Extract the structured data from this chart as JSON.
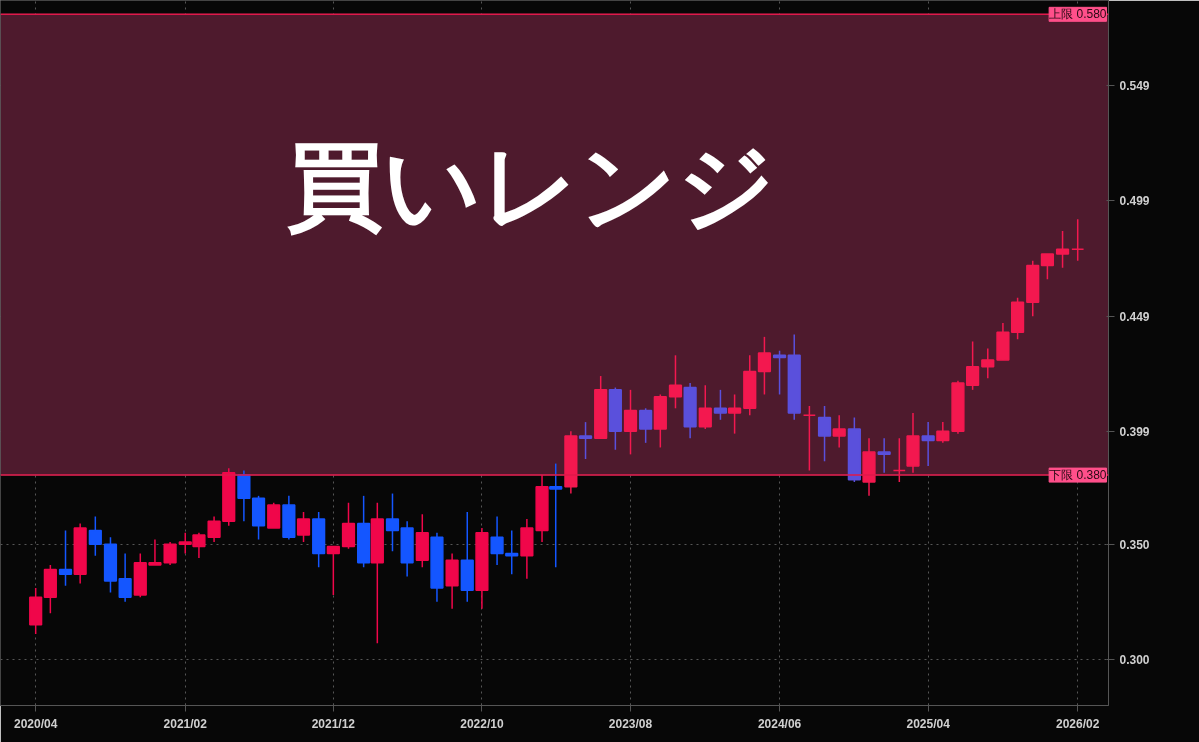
{
  "chart_data": {
    "type": "candlestick",
    "annotations": [
      "買いレンジ"
    ],
    "x": [
      "2020-04",
      "2020-05",
      "2020-06",
      "2020-07",
      "2020-08",
      "2020-09",
      "2020-10",
      "2020-11",
      "2020-12",
      "2021-01",
      "2021-02",
      "2021-03",
      "2021-04",
      "2021-05",
      "2021-06",
      "2021-07",
      "2021-08",
      "2021-09",
      "2021-10",
      "2021-11",
      "2021-12",
      "2022-01",
      "2022-02",
      "2022-03",
      "2022-04",
      "2022-05",
      "2022-06",
      "2022-07",
      "2022-08",
      "2022-09",
      "2022-10",
      "2022-11",
      "2022-12",
      "2023-01",
      "2023-02",
      "2023-03",
      "2023-04",
      "2023-05",
      "2023-06",
      "2023-07",
      "2023-08",
      "2023-09",
      "2023-10",
      "2023-11",
      "2023-12",
      "2024-01",
      "2024-02",
      "2024-03",
      "2024-04",
      "2024-05",
      "2024-06",
      "2024-07",
      "2024-08",
      "2024-09",
      "2024-10",
      "2024-11",
      "2024-12",
      "2025-01",
      "2025-02",
      "2025-03",
      "2025-04",
      "2025-05",
      "2025-06",
      "2025-07",
      "2025-08",
      "2025-09",
      "2025-10",
      "2025-11",
      "2025-12",
      "2026-01",
      "2026-02"
    ],
    "ohlc": [
      [
        0.315,
        0.331,
        0.311,
        0.327
      ],
      [
        0.327,
        0.341,
        0.32,
        0.339
      ],
      [
        0.339,
        0.356,
        0.332,
        0.337
      ],
      [
        0.337,
        0.359,
        0.333,
        0.357
      ],
      [
        0.356,
        0.362,
        0.345,
        0.35
      ],
      [
        0.35,
        0.353,
        0.329,
        0.334
      ],
      [
        0.335,
        0.346,
        0.325,
        0.327
      ],
      [
        0.328,
        0.346,
        0.327,
        0.342
      ],
      [
        0.341,
        0.352,
        0.341,
        0.342
      ],
      [
        0.342,
        0.351,
        0.341,
        0.35
      ],
      [
        0.35,
        0.355,
        0.346,
        0.351
      ],
      [
        0.349,
        0.355,
        0.344,
        0.354
      ],
      [
        0.353,
        0.362,
        0.351,
        0.36
      ],
      [
        0.36,
        0.383,
        0.358,
        0.381
      ],
      [
        0.38,
        0.382,
        0.36,
        0.37
      ],
      [
        0.37,
        0.371,
        0.352,
        0.358
      ],
      [
        0.357,
        0.368,
        0.357,
        0.367
      ],
      [
        0.367,
        0.371,
        0.352,
        0.353
      ],
      [
        0.354,
        0.364,
        0.351,
        0.361
      ],
      [
        0.361,
        0.364,
        0.34,
        0.346
      ],
      [
        0.346,
        0.349,
        0.328,
        0.349
      ],
      [
        0.349,
        0.368,
        0.348,
        0.359
      ],
      [
        0.359,
        0.371,
        0.34,
        0.342
      ],
      [
        0.342,
        0.368,
        0.307,
        0.361
      ],
      [
        0.361,
        0.372,
        0.347,
        0.356
      ],
      [
        0.357,
        0.36,
        0.336,
        0.342
      ],
      [
        0.343,
        0.363,
        0.34,
        0.355
      ],
      [
        0.353,
        0.355,
        0.325,
        0.331
      ],
      [
        0.332,
        0.346,
        0.322,
        0.343
      ],
      [
        0.343,
        0.364,
        0.325,
        0.33
      ],
      [
        0.33,
        0.357,
        0.322,
        0.355
      ],
      [
        0.353,
        0.362,
        0.341,
        0.346
      ],
      [
        0.346,
        0.356,
        0.337,
        0.345
      ],
      [
        0.345,
        0.361,
        0.335,
        0.357
      ],
      [
        0.356,
        0.38,
        0.351,
        0.375
      ],
      [
        0.375,
        0.385,
        0.34,
        0.374
      ],
      [
        0.375,
        0.399,
        0.372,
        0.397
      ],
      [
        0.397,
        0.403,
        0.387,
        0.396
      ],
      [
        0.396,
        0.423,
        0.396,
        0.417
      ],
      [
        0.417,
        0.418,
        0.391,
        0.399
      ],
      [
        0.399,
        0.417,
        0.389,
        0.408
      ],
      [
        0.408,
        0.409,
        0.394,
        0.4
      ],
      [
        0.4,
        0.415,
        0.392,
        0.414
      ],
      [
        0.414,
        0.432,
        0.409,
        0.419
      ],
      [
        0.418,
        0.42,
        0.396,
        0.401
      ],
      [
        0.401,
        0.419,
        0.4,
        0.409
      ],
      [
        0.409,
        0.417,
        0.404,
        0.407
      ],
      [
        0.407,
        0.415,
        0.398,
        0.409
      ],
      [
        0.409,
        0.432,
        0.406,
        0.425
      ],
      [
        0.425,
        0.44,
        0.415,
        0.433
      ],
      [
        0.432,
        0.434,
        0.415,
        0.431
      ],
      [
        0.432,
        0.441,
        0.404,
        0.407
      ],
      [
        0.406,
        0.41,
        0.382,
        0.406
      ],
      [
        0.405,
        0.41,
        0.386,
        0.397
      ],
      [
        0.397,
        0.406,
        0.392,
        0.4
      ],
      [
        0.4,
        0.405,
        0.377,
        0.378
      ],
      [
        0.377,
        0.396,
        0.371,
        0.39
      ],
      [
        0.39,
        0.396,
        0.381,
        0.389
      ],
      [
        0.382,
        0.396,
        0.377,
        0.382
      ],
      [
        0.384,
        0.407,
        0.381,
        0.397
      ],
      [
        0.397,
        0.403,
        0.384,
        0.395
      ],
      [
        0.395,
        0.403,
        0.394,
        0.399
      ],
      [
        0.399,
        0.421,
        0.398,
        0.42
      ],
      [
        0.419,
        0.438,
        0.417,
        0.427
      ],
      [
        0.427,
        0.435,
        0.422,
        0.43
      ],
      [
        0.43,
        0.446,
        0.43,
        0.442
      ],
      [
        0.442,
        0.457,
        0.439,
        0.455
      ],
      [
        0.455,
        0.473,
        0.449,
        0.471
      ],
      [
        0.471,
        0.476,
        0.465,
        0.476
      ],
      [
        0.476,
        0.486,
        0.47,
        0.478
      ],
      [
        0.478,
        0.491,
        0.473,
        0.478
      ]
    ],
    "colors": [
      "#f0064a",
      "#f0064a",
      "#1456ff",
      "#f0064a",
      "#1456ff",
      "#1456ff",
      "#1456ff",
      "#f0064a",
      "#f0064a",
      "#f0064a",
      "#f0064a",
      "#f0064a",
      "#f0064a",
      "#f0064a",
      "#1456ff",
      "#1456ff",
      "#f0064a",
      "#1456ff",
      "#f0064a",
      "#1456ff",
      "#f0064a",
      "#f0064a",
      "#1456ff",
      "#f0064a",
      "#1456ff",
      "#1456ff",
      "#f0064a",
      "#1456ff",
      "#f0064a",
      "#1456ff",
      "#f0064a",
      "#1456ff",
      "#1456ff",
      "#f0064a",
      "#f0064a",
      "#1456ff",
      "#f3184f",
      "#5a50dc",
      "#f3184f",
      "#5a50dc",
      "#f3184f",
      "#5a50dc",
      "#f3184f",
      "#f3184f",
      "#5a50dc",
      "#f3184f",
      "#5a50dc",
      "#f3184f",
      "#f3184f",
      "#f3184f",
      "#5a50dc",
      "#5a50dc",
      "#f3184f",
      "#5a50dc",
      "#f3184f",
      "#5a50dc",
      "#f3184f",
      "#5a50dc",
      "#f3184f",
      "#f3184f",
      "#5a50dc",
      "#f3184f",
      "#f3184f",
      "#f3184f",
      "#f3184f",
      "#f3184f",
      "#f3184f",
      "#f3184f",
      "#f3184f",
      "#f3184f",
      "#f3184f"
    ],
    "xlim": [
      "2020-01-20",
      "2026-04-05"
    ],
    "xticks": [
      {
        "value": "2020-04",
        "label": "2020/04"
      },
      {
        "value": "2021-02",
        "label": "2021/02"
      },
      {
        "value": "2021-12",
        "label": "2021/12"
      },
      {
        "value": "2022-10",
        "label": "2022/10"
      },
      {
        "value": "2023-08",
        "label": "2023/08"
      },
      {
        "value": "2024-06",
        "label": "2024/06"
      },
      {
        "value": "2025-04",
        "label": "2025/04"
      },
      {
        "value": "2026-02",
        "label": "2026/02"
      }
    ],
    "ylim": [
      0.28,
      0.586
    ],
    "yticks": [
      {
        "value": 0.3,
        "label": "0.300"
      },
      {
        "value": 0.35,
        "label": "0.350"
      },
      0.399,
      0.449,
      0.499,
      0.549
    ],
    "bands": [
      {
        "axis": "y",
        "from": 0.38,
        "to": 0.58,
        "color": "#4e1a2d"
      }
    ],
    "ref_lines": [
      {
        "axis": "y",
        "value": 0.58,
        "label": "上限 0.580",
        "color": "#e0184a"
      },
      {
        "axis": "y",
        "value": 0.38,
        "label": "下限 0.380",
        "color": "#e0184a"
      }
    ],
    "grid": true
  }
}
